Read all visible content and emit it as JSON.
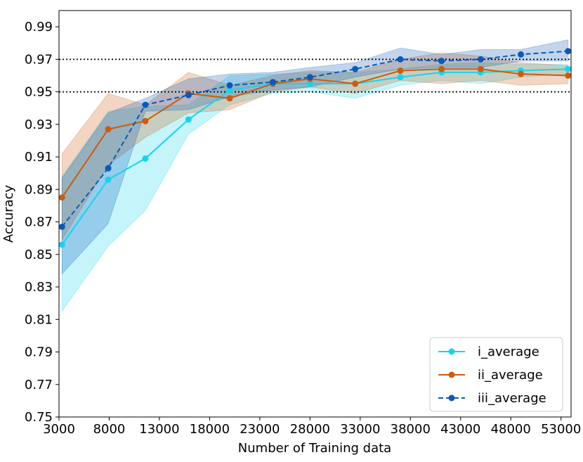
{
  "chart_data": {
    "type": "line",
    "title": "",
    "xlabel": "Number of Training data",
    "ylabel": "Accuracy",
    "xlim": [
      3000,
      54000
    ],
    "ylim": [
      0.75,
      1.0
    ],
    "xticks": [
      3000,
      8000,
      13000,
      18000,
      23000,
      28000,
      33000,
      38000,
      43000,
      48000,
      53000
    ],
    "xtick_labels": [
      "3000",
      "8000",
      "13000",
      "18000",
      "23000",
      "28000",
      "33000",
      "38000",
      "43000",
      "48000",
      "53000"
    ],
    "yticks": [
      0.75,
      0.77,
      0.79,
      0.81,
      0.83,
      0.85,
      0.87,
      0.89,
      0.91,
      0.93,
      0.95,
      0.97,
      0.99
    ],
    "ytick_labels": [
      "0.75",
      "0.77",
      "0.79",
      "0.81",
      "0.83",
      "0.85",
      "0.87",
      "0.89",
      "0.91",
      "0.93",
      "0.95",
      "0.97",
      "0.99"
    ],
    "reference_lines": [
      0.95,
      0.97
    ],
    "legend_position": "bottom-right",
    "series": [
      {
        "name": "i_average",
        "color": "#17d4ee",
        "line_style": "solid",
        "x": [
          3300,
          7900,
          11600,
          15900,
          20000,
          24300,
          28000,
          32500,
          37000,
          41100,
          45000,
          49000,
          53700
        ],
        "values": [
          0.856,
          0.896,
          0.909,
          0.933,
          0.951,
          0.955,
          0.955,
          0.955,
          0.959,
          0.962,
          0.962,
          0.963,
          0.964
        ],
        "upper": [
          0.898,
          0.938,
          0.941,
          0.942,
          0.96,
          0.961,
          0.962,
          0.962,
          0.964,
          0.967,
          0.968,
          0.967,
          0.967
        ],
        "lower": [
          0.815,
          0.855,
          0.877,
          0.924,
          0.942,
          0.949,
          0.95,
          0.946,
          0.954,
          0.957,
          0.955,
          0.959,
          0.961
        ]
      },
      {
        "name": "ii_average",
        "color": "#cc5c0e",
        "line_style": "solid",
        "x": [
          3300,
          7900,
          11600,
          15900,
          20000,
          24300,
          28000,
          32500,
          37000,
          41100,
          45000,
          49000,
          53700
        ],
        "values": [
          0.885,
          0.927,
          0.932,
          0.949,
          0.946,
          0.955,
          0.958,
          0.955,
          0.963,
          0.964,
          0.964,
          0.961,
          0.96
        ],
        "upper": [
          0.912,
          0.949,
          0.942,
          0.962,
          0.954,
          0.96,
          0.963,
          0.962,
          0.97,
          0.974,
          0.972,
          0.968,
          0.966
        ],
        "lower": [
          0.859,
          0.905,
          0.922,
          0.937,
          0.939,
          0.95,
          0.953,
          0.949,
          0.957,
          0.955,
          0.957,
          0.954,
          0.955
        ]
      },
      {
        "name": "iii_average",
        "color": "#0b59b8",
        "line_style": "dashed",
        "x": [
          3300,
          7900,
          11600,
          15900,
          20000,
          24300,
          28000,
          32500,
          37000,
          41100,
          45000,
          49000,
          53700
        ],
        "values": [
          0.867,
          0.903,
          0.942,
          0.948,
          0.954,
          0.956,
          0.959,
          0.964,
          0.97,
          0.969,
          0.97,
          0.973,
          0.975
        ],
        "upper": [
          0.897,
          0.937,
          0.946,
          0.958,
          0.961,
          0.962,
          0.965,
          0.968,
          0.977,
          0.973,
          0.976,
          0.976,
          0.982
        ],
        "lower": [
          0.838,
          0.869,
          0.938,
          0.939,
          0.947,
          0.951,
          0.953,
          0.959,
          0.964,
          0.965,
          0.965,
          0.969,
          0.969
        ]
      }
    ]
  }
}
